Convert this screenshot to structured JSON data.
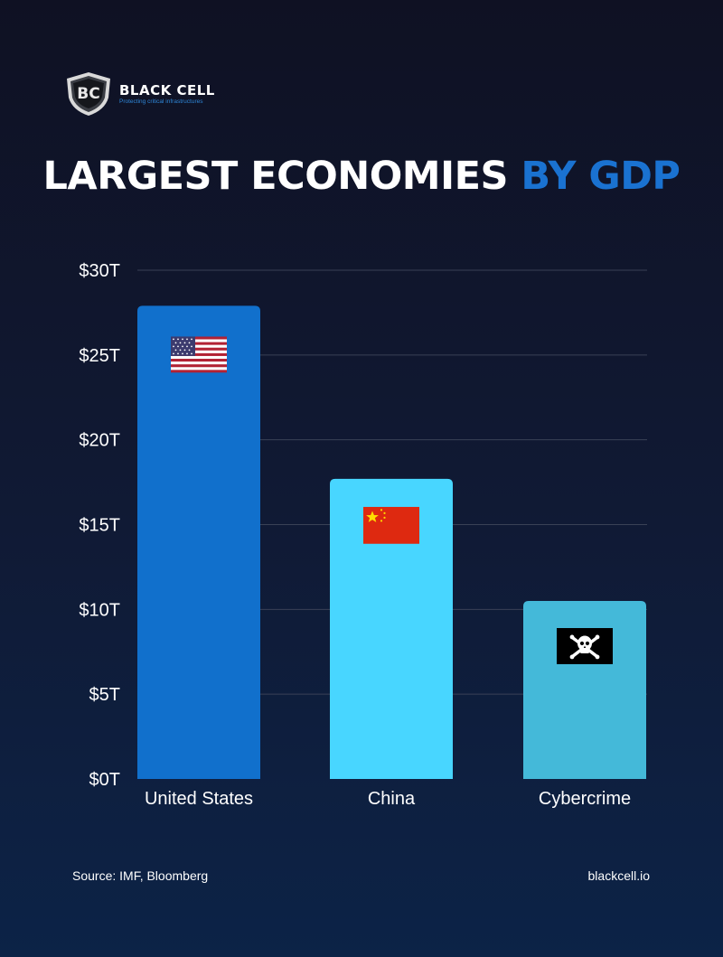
{
  "brand": {
    "logo_initials": "BC",
    "name": "BLACK CELL",
    "tagline": "Protecting critical infrastructures"
  },
  "title": {
    "main": "LARGEST ECONOMIES",
    "accent": "BY GDP",
    "accent_color": "#1a72d1"
  },
  "chart_data": {
    "type": "bar",
    "categories": [
      "United States",
      "China",
      "Cybercrime"
    ],
    "values": [
      27.9,
      17.7,
      10.5
    ],
    "bar_colors": [
      "#1170cc",
      "#48d6ff",
      "#44b9d9"
    ],
    "bar_icons": [
      "us-flag-icon",
      "china-flag-icon",
      "pirate-flag-icon"
    ],
    "ylim": [
      0,
      30
    ],
    "yticks": [
      0,
      5,
      10,
      15,
      20,
      25,
      30
    ],
    "ytick_labels": [
      "$0T",
      "$5T",
      "$10T",
      "$15T",
      "$20T",
      "$25T",
      "$30T"
    ],
    "grid": true
  },
  "footer": {
    "source": "Source: IMF, Bloomberg",
    "website": "blackcell.io"
  }
}
